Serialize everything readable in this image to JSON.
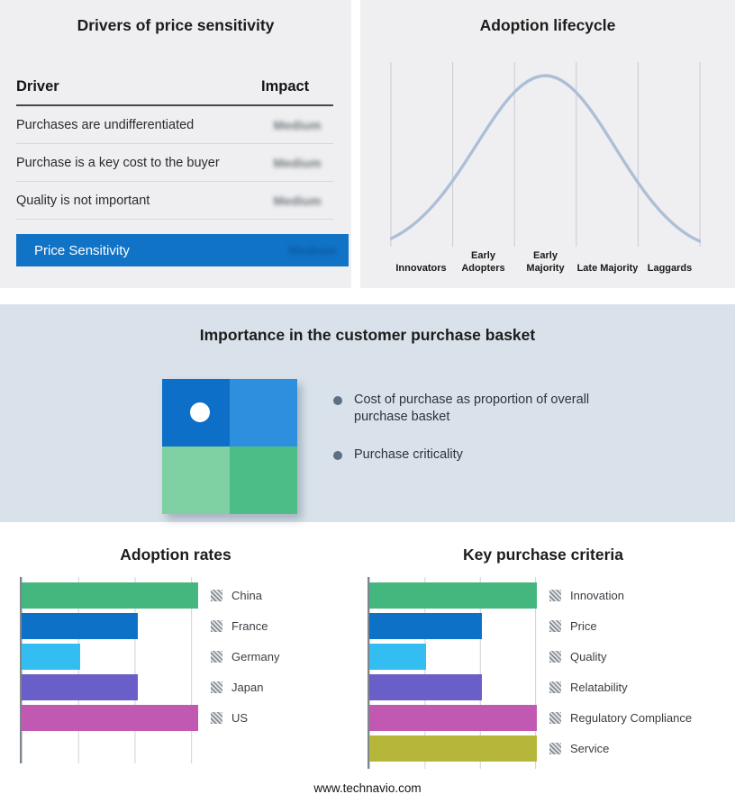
{
  "colors": {
    "accent_blue": "#1173c6",
    "panel_bg": "#efeff1",
    "band_bg": "#d9e2ea",
    "curve": "#adbfd6",
    "green": "#43b77e",
    "blue": "#0e71c8",
    "cyan": "#33bdf0",
    "purple": "#6a5ec8",
    "magenta": "#c158b2",
    "olive": "#b6b73a"
  },
  "drivers_panel": {
    "title": "Drivers of price sensitivity",
    "table": {
      "headers": {
        "driver": "Driver",
        "impact": "Impact"
      },
      "rows": [
        {
          "driver": "Purchases are undifferentiated",
          "impact": "Medium"
        },
        {
          "driver": "Purchase is a key cost to the buyer",
          "impact": "Medium"
        },
        {
          "driver": "Quality is not important",
          "impact": "Medium"
        }
      ],
      "summary": {
        "label": "Price Sensitivity",
        "impact": "Medium"
      }
    }
  },
  "lifecycle_panel": {
    "title": "Adoption lifecycle",
    "stages": [
      "Innovators",
      "Early Adopters",
      "Early Majority",
      "Late Majority",
      "Laggards"
    ]
  },
  "basket_panel": {
    "title": "Importance in the customer purchase basket",
    "bullets": [
      "Cost of purchase as proportion of overall purchase basket",
      "Purchase criticality"
    ]
  },
  "footer": {
    "url": "www.technavio.com"
  },
  "chart_data": [
    {
      "type": "line",
      "title": "Adoption lifecycle",
      "shape": "bell curve (normal distribution), no numeric axes shown",
      "categories": [
        "Innovators",
        "Early Adopters",
        "Early Majority",
        "Late Majority",
        "Laggards"
      ],
      "values": [
        8,
        55,
        100,
        55,
        8
      ],
      "grid": "vertical stage dividers",
      "line_color": "#adbfd6"
    },
    {
      "type": "bar",
      "orientation": "horizontal",
      "title": "Adoption rates",
      "categories": [
        "China",
        "France",
        "Germany",
        "Japan",
        "US"
      ],
      "values": [
        100,
        66,
        33,
        66,
        100
      ],
      "value_unit": "relative length, no axis labels shown",
      "xlim": [
        0,
        100
      ],
      "colors": [
        "#43b77e",
        "#0e71c8",
        "#33bdf0",
        "#6a5ec8",
        "#c158b2"
      ],
      "legend_position": "right",
      "grid": "vertical gridlines on"
    },
    {
      "type": "bar",
      "orientation": "horizontal",
      "title": "Key purchase criteria",
      "categories": [
        "Innovation",
        "Price",
        "Quality",
        "Relatability",
        "Regulatory Compliance",
        "Service"
      ],
      "values": [
        100,
        67,
        34,
        67,
        100,
        100
      ],
      "value_unit": "relative length, no axis labels shown",
      "xlim": [
        0,
        100
      ],
      "colors": [
        "#43b77e",
        "#0e71c8",
        "#33bdf0",
        "#6a5ec8",
        "#c158b2",
        "#b6b73a"
      ],
      "legend_position": "right",
      "grid": "vertical gridlines on"
    }
  ]
}
